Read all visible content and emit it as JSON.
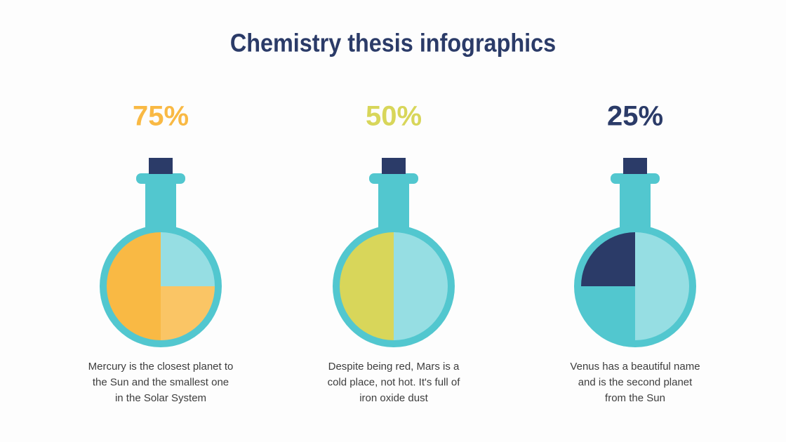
{
  "title": "Chemistry thesis infographics",
  "chart_data": [
    {
      "type": "pie",
      "values": [
        75
      ],
      "value_labels": [
        "75%"
      ],
      "color": "#f9b944",
      "caption": [
        "Mercury is the closest planet to",
        "the Sun and the smallest one",
        "in the Solar System"
      ]
    },
    {
      "type": "pie",
      "values": [
        50
      ],
      "value_labels": [
        "50%"
      ],
      "color": "#d8d65a",
      "caption": [
        "Despite being red, Mars is a",
        "cold place, not hot. It's full of",
        "iron oxide dust"
      ]
    },
    {
      "type": "pie",
      "values": [
        25
      ],
      "value_labels": [
        "25%"
      ],
      "color": "#2b3b68",
      "caption": [
        "Venus has a beautiful name",
        "and is the second planet",
        "from the Sun"
      ]
    }
  ]
}
